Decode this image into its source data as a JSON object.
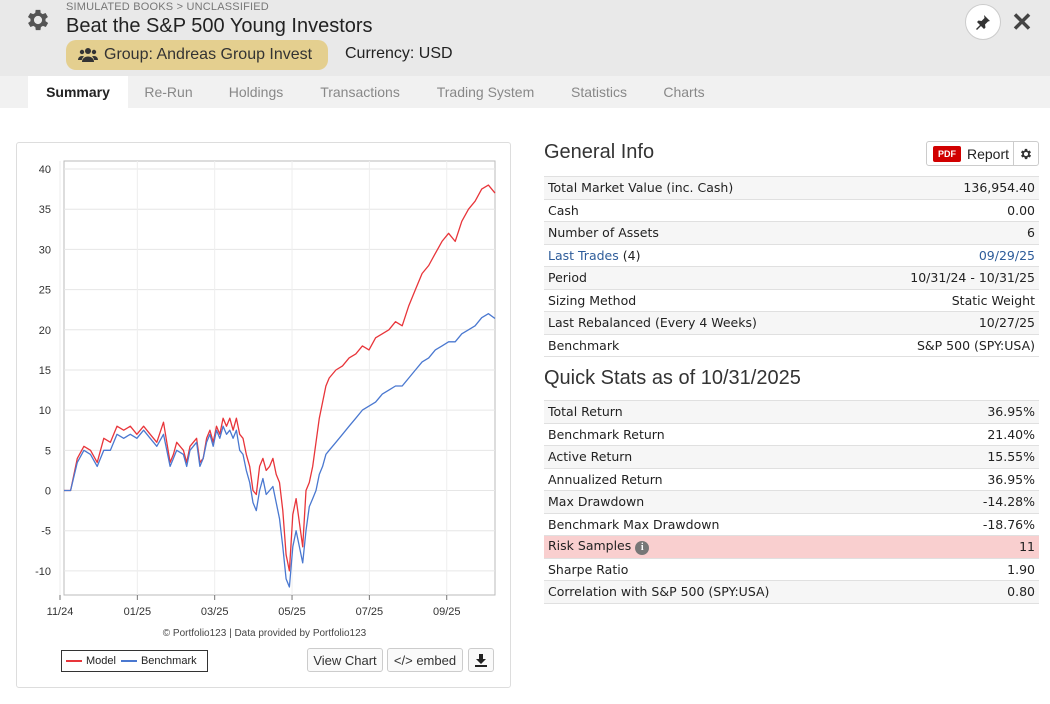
{
  "header": {
    "breadcrumb": "SIMULATED BOOKS > UNCLASSIFIED",
    "title": "Beat the S&P 500 Young Investors",
    "group": "Group: Andreas Group Invest",
    "currency": "Currency: USD",
    "icons": {
      "settings": "gear-icon",
      "pin": "pin-icon",
      "close": "close-icon",
      "group": "users-icon"
    },
    "close_glyph": "✕"
  },
  "tabs": [
    {
      "label": "Summary",
      "active": true
    },
    {
      "label": "Re-Run"
    },
    {
      "label": "Holdings"
    },
    {
      "label": "Transactions"
    },
    {
      "label": "Trading System"
    },
    {
      "label": "Statistics"
    },
    {
      "label": "Charts"
    }
  ],
  "chart": {
    "credit": "© Portfolio123 | Data provided by Portfolio123",
    "legend": {
      "model": "Model",
      "benchmark": "Benchmark"
    },
    "buttons": {
      "view_chart": "View Chart",
      "embed": "</> embed",
      "download": "download-icon"
    }
  },
  "chart_data": {
    "type": "line",
    "ylim": [
      -13,
      41
    ],
    "yticks": [
      40,
      35,
      30,
      25,
      20,
      15,
      10,
      5,
      0,
      -5,
      -10
    ],
    "xticks": [
      "11/24",
      "01/25",
      "03/25",
      "05/25",
      "07/25",
      "09/25"
    ],
    "grid": true,
    "legend_position": "bottom-left",
    "colors": {
      "model": "#e8353a",
      "benchmark": "#4a78d0"
    },
    "series": [
      {
        "name": "Model",
        "points": [
          [
            0,
            0
          ],
          [
            2,
            0
          ],
          [
            4,
            4
          ],
          [
            6,
            5.5
          ],
          [
            8,
            5
          ],
          [
            10,
            3.5
          ],
          [
            12,
            6.5
          ],
          [
            14,
            6
          ],
          [
            16,
            8
          ],
          [
            18,
            7.5
          ],
          [
            20,
            8
          ],
          [
            22,
            7
          ],
          [
            24,
            8
          ],
          [
            26,
            7
          ],
          [
            28,
            6
          ],
          [
            30,
            8.5
          ],
          [
            31,
            6
          ],
          [
            32,
            3.5
          ],
          [
            33,
            4.5
          ],
          [
            34,
            6
          ],
          [
            36,
            5
          ],
          [
            37,
            3.5
          ],
          [
            38,
            5.5
          ],
          [
            40,
            6.5
          ],
          [
            41,
            3.5
          ],
          [
            42,
            4
          ],
          [
            43,
            6.5
          ],
          [
            44,
            7.5
          ],
          [
            45,
            6
          ],
          [
            46,
            8
          ],
          [
            47,
            7
          ],
          [
            48,
            9
          ],
          [
            49,
            8
          ],
          [
            50,
            9
          ],
          [
            51,
            7.5
          ],
          [
            52,
            9
          ],
          [
            53,
            7
          ],
          [
            54,
            6.5
          ],
          [
            55,
            4.5
          ],
          [
            56,
            3
          ],
          [
            57,
            0
          ],
          [
            58,
            -0.5
          ],
          [
            59,
            3
          ],
          [
            60,
            4
          ],
          [
            61,
            2.5
          ],
          [
            62,
            3
          ],
          [
            63,
            4
          ],
          [
            64,
            2
          ],
          [
            65,
            1
          ],
          [
            66,
            -2.5
          ],
          [
            67,
            -8
          ],
          [
            68,
            -10
          ],
          [
            69,
            -3
          ],
          [
            70,
            -1
          ],
          [
            71,
            -4
          ],
          [
            72,
            -7
          ],
          [
            73,
            0
          ],
          [
            74,
            1
          ],
          [
            75,
            3
          ],
          [
            76,
            6
          ],
          [
            77,
            9
          ],
          [
            78,
            11
          ],
          [
            79,
            13
          ],
          [
            80,
            14
          ],
          [
            82,
            15
          ],
          [
            84,
            15.5
          ],
          [
            86,
            16.5
          ],
          [
            88,
            17
          ],
          [
            90,
            18
          ],
          [
            92,
            17.5
          ],
          [
            94,
            19
          ],
          [
            96,
            19.5
          ],
          [
            98,
            20
          ],
          [
            100,
            21
          ],
          [
            102,
            20.5
          ],
          [
            104,
            23
          ],
          [
            106,
            25
          ],
          [
            108,
            27
          ],
          [
            110,
            28
          ],
          [
            112,
            29.5
          ],
          [
            114,
            31
          ],
          [
            116,
            32
          ],
          [
            118,
            31
          ],
          [
            120,
            33.5
          ],
          [
            122,
            35
          ],
          [
            124,
            36
          ],
          [
            126,
            37.5
          ],
          [
            128,
            38
          ],
          [
            130,
            37
          ]
        ]
      },
      {
        "name": "Benchmark",
        "points": [
          [
            0,
            0
          ],
          [
            2,
            0
          ],
          [
            4,
            3.5
          ],
          [
            6,
            5
          ],
          [
            8,
            4.5
          ],
          [
            10,
            3
          ],
          [
            12,
            5
          ],
          [
            14,
            5
          ],
          [
            16,
            7
          ],
          [
            18,
            6.5
          ],
          [
            20,
            7
          ],
          [
            22,
            6.5
          ],
          [
            24,
            7.5
          ],
          [
            26,
            6.5
          ],
          [
            28,
            5.5
          ],
          [
            30,
            7
          ],
          [
            31,
            5
          ],
          [
            32,
            3
          ],
          [
            33,
            4
          ],
          [
            34,
            5
          ],
          [
            36,
            4.5
          ],
          [
            37,
            3
          ],
          [
            38,
            5
          ],
          [
            40,
            6
          ],
          [
            41,
            3
          ],
          [
            42,
            4
          ],
          [
            43,
            6
          ],
          [
            44,
            7
          ],
          [
            45,
            5.5
          ],
          [
            46,
            7.5
          ],
          [
            47,
            6.5
          ],
          [
            48,
            8
          ],
          [
            49,
            7
          ],
          [
            50,
            7.5
          ],
          [
            51,
            6.5
          ],
          [
            52,
            7.5
          ],
          [
            53,
            5
          ],
          [
            54,
            4.5
          ],
          [
            55,
            2.5
          ],
          [
            56,
            1
          ],
          [
            57,
            -1.5
          ],
          [
            58,
            -2.5
          ],
          [
            59,
            0
          ],
          [
            60,
            1.5
          ],
          [
            61,
            -0.5
          ],
          [
            62,
            0
          ],
          [
            63,
            0.5
          ],
          [
            64,
            -1.5
          ],
          [
            65,
            -3.5
          ],
          [
            66,
            -7
          ],
          [
            67,
            -11
          ],
          [
            68,
            -12
          ],
          [
            69,
            -7
          ],
          [
            70,
            -5
          ],
          [
            71,
            -7
          ],
          [
            72,
            -9
          ],
          [
            73,
            -5
          ],
          [
            74,
            -2
          ],
          [
            75,
            -1
          ],
          [
            76,
            0
          ],
          [
            77,
            2
          ],
          [
            78,
            3
          ],
          [
            79,
            4.5
          ],
          [
            80,
            5
          ],
          [
            82,
            6
          ],
          [
            84,
            7
          ],
          [
            86,
            8
          ],
          [
            88,
            9
          ],
          [
            90,
            10
          ],
          [
            92,
            10.5
          ],
          [
            94,
            11
          ],
          [
            96,
            12
          ],
          [
            98,
            12.5
          ],
          [
            100,
            13
          ],
          [
            102,
            13
          ],
          [
            104,
            14
          ],
          [
            106,
            15
          ],
          [
            108,
            16
          ],
          [
            110,
            16.5
          ],
          [
            112,
            17.5
          ],
          [
            114,
            18
          ],
          [
            116,
            18.5
          ],
          [
            118,
            18.5
          ],
          [
            120,
            19.5
          ],
          [
            122,
            20
          ],
          [
            124,
            20.5
          ],
          [
            126,
            21.5
          ],
          [
            128,
            22
          ],
          [
            130,
            21.4
          ]
        ]
      }
    ]
  },
  "general_info": {
    "title": "General Info",
    "report": {
      "pdf": "PDF",
      "label": "Report",
      "settings_icon": "gear-icon"
    },
    "rows": [
      {
        "label": "Total Market Value (inc. Cash)",
        "value": "136,954.40"
      },
      {
        "label": "Cash",
        "value": "0.00"
      },
      {
        "label": "Number of Assets",
        "value": "6"
      },
      {
        "label": "Last Trades",
        "label_suffix": "(4)",
        "value": "09/29/25",
        "link": true
      },
      {
        "label": "Period",
        "value": "10/31/24 - 10/31/25"
      },
      {
        "label": "Sizing Method",
        "value": "Static Weight"
      },
      {
        "label": "Last Rebalanced (Every 4 Weeks)",
        "value": "10/27/25"
      },
      {
        "label": "Benchmark",
        "value": "S&P 500 (SPY:USA)"
      }
    ]
  },
  "quick_stats": {
    "title": "Quick Stats as of 10/31/2025",
    "rows": [
      {
        "label": "Total Return",
        "value": "36.95%"
      },
      {
        "label": "Benchmark Return",
        "value": "21.40%"
      },
      {
        "label": "Active Return",
        "value": "15.55%"
      },
      {
        "label": "Annualized Return",
        "value": "36.95%"
      },
      {
        "label": "Max Drawdown",
        "value": "-14.28%",
        "negative": true
      },
      {
        "label": "Benchmark Max Drawdown",
        "value": "-18.76%",
        "negative": true
      },
      {
        "label": "Risk Samples",
        "value": "11",
        "warning": true,
        "info_icon": "info-icon",
        "info_glyph": "i"
      },
      {
        "label": "Sharpe Ratio",
        "value": "1.90"
      },
      {
        "label": "Correlation with S&P 500 (SPY:USA)",
        "value": "0.80"
      }
    ]
  }
}
